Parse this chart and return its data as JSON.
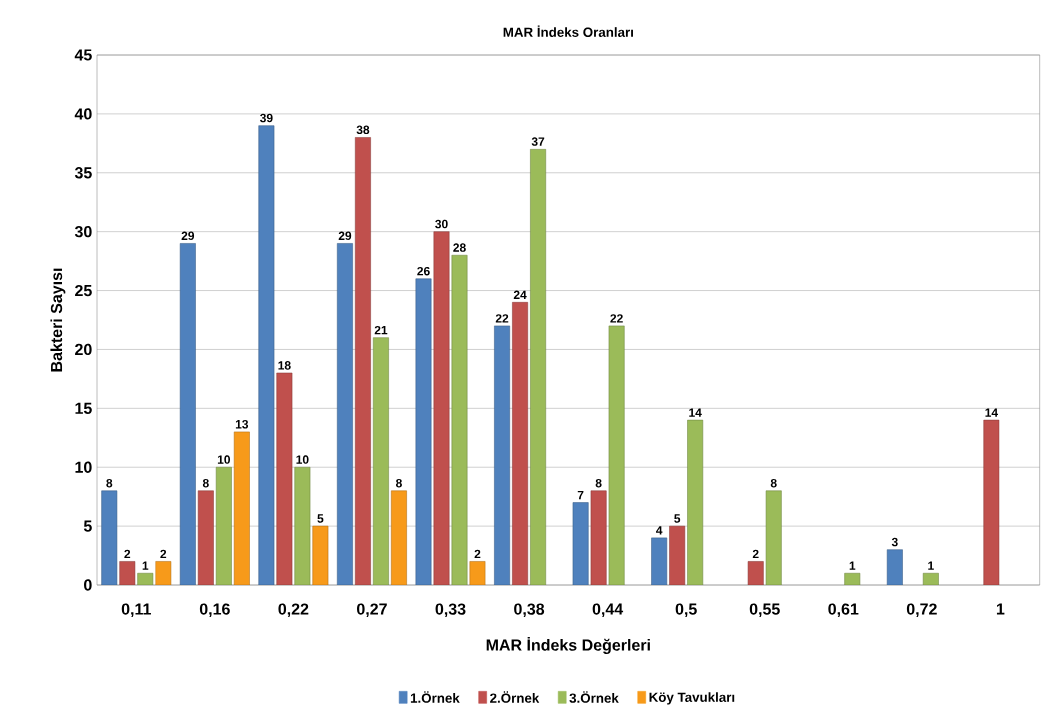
{
  "chart_data": {
    "type": "bar",
    "title": "MAR İndeks Oranları",
    "xlabel": "MAR İndeks Değerleri",
    "ylabel": "Bakteri Sayısı",
    "categories": [
      "0,11",
      "0,16",
      "0,22",
      "0,27",
      "0,33",
      "0,38",
      "0,44",
      "0,5",
      "0,55",
      "0,61",
      "0,72",
      "1"
    ],
    "series": [
      {
        "name": "1.Örnek",
        "color": "#4f81bd",
        "values": [
          8,
          29,
          39,
          29,
          26,
          22,
          7,
          4,
          null,
          null,
          3,
          null
        ]
      },
      {
        "name": "2.Örnek",
        "color": "#c0504d",
        "values": [
          2,
          8,
          18,
          38,
          30,
          24,
          8,
          5,
          2,
          null,
          null,
          14
        ]
      },
      {
        "name": "3.Örnek",
        "color": "#9bbb59",
        "values": [
          1,
          10,
          10,
          21,
          28,
          37,
          22,
          14,
          8,
          1,
          1,
          null
        ]
      },
      {
        "name": "Köy Tavukları",
        "color": "#f79a1a",
        "values": [
          2,
          13,
          5,
          8,
          2,
          null,
          null,
          null,
          null,
          null,
          null,
          null
        ]
      }
    ],
    "ylim": [
      0,
      45
    ],
    "yticks": [
      0,
      5,
      10,
      15,
      20,
      25,
      30,
      35,
      40,
      45
    ],
    "grid": "y",
    "legend": "bottom",
    "data_labels": true
  }
}
